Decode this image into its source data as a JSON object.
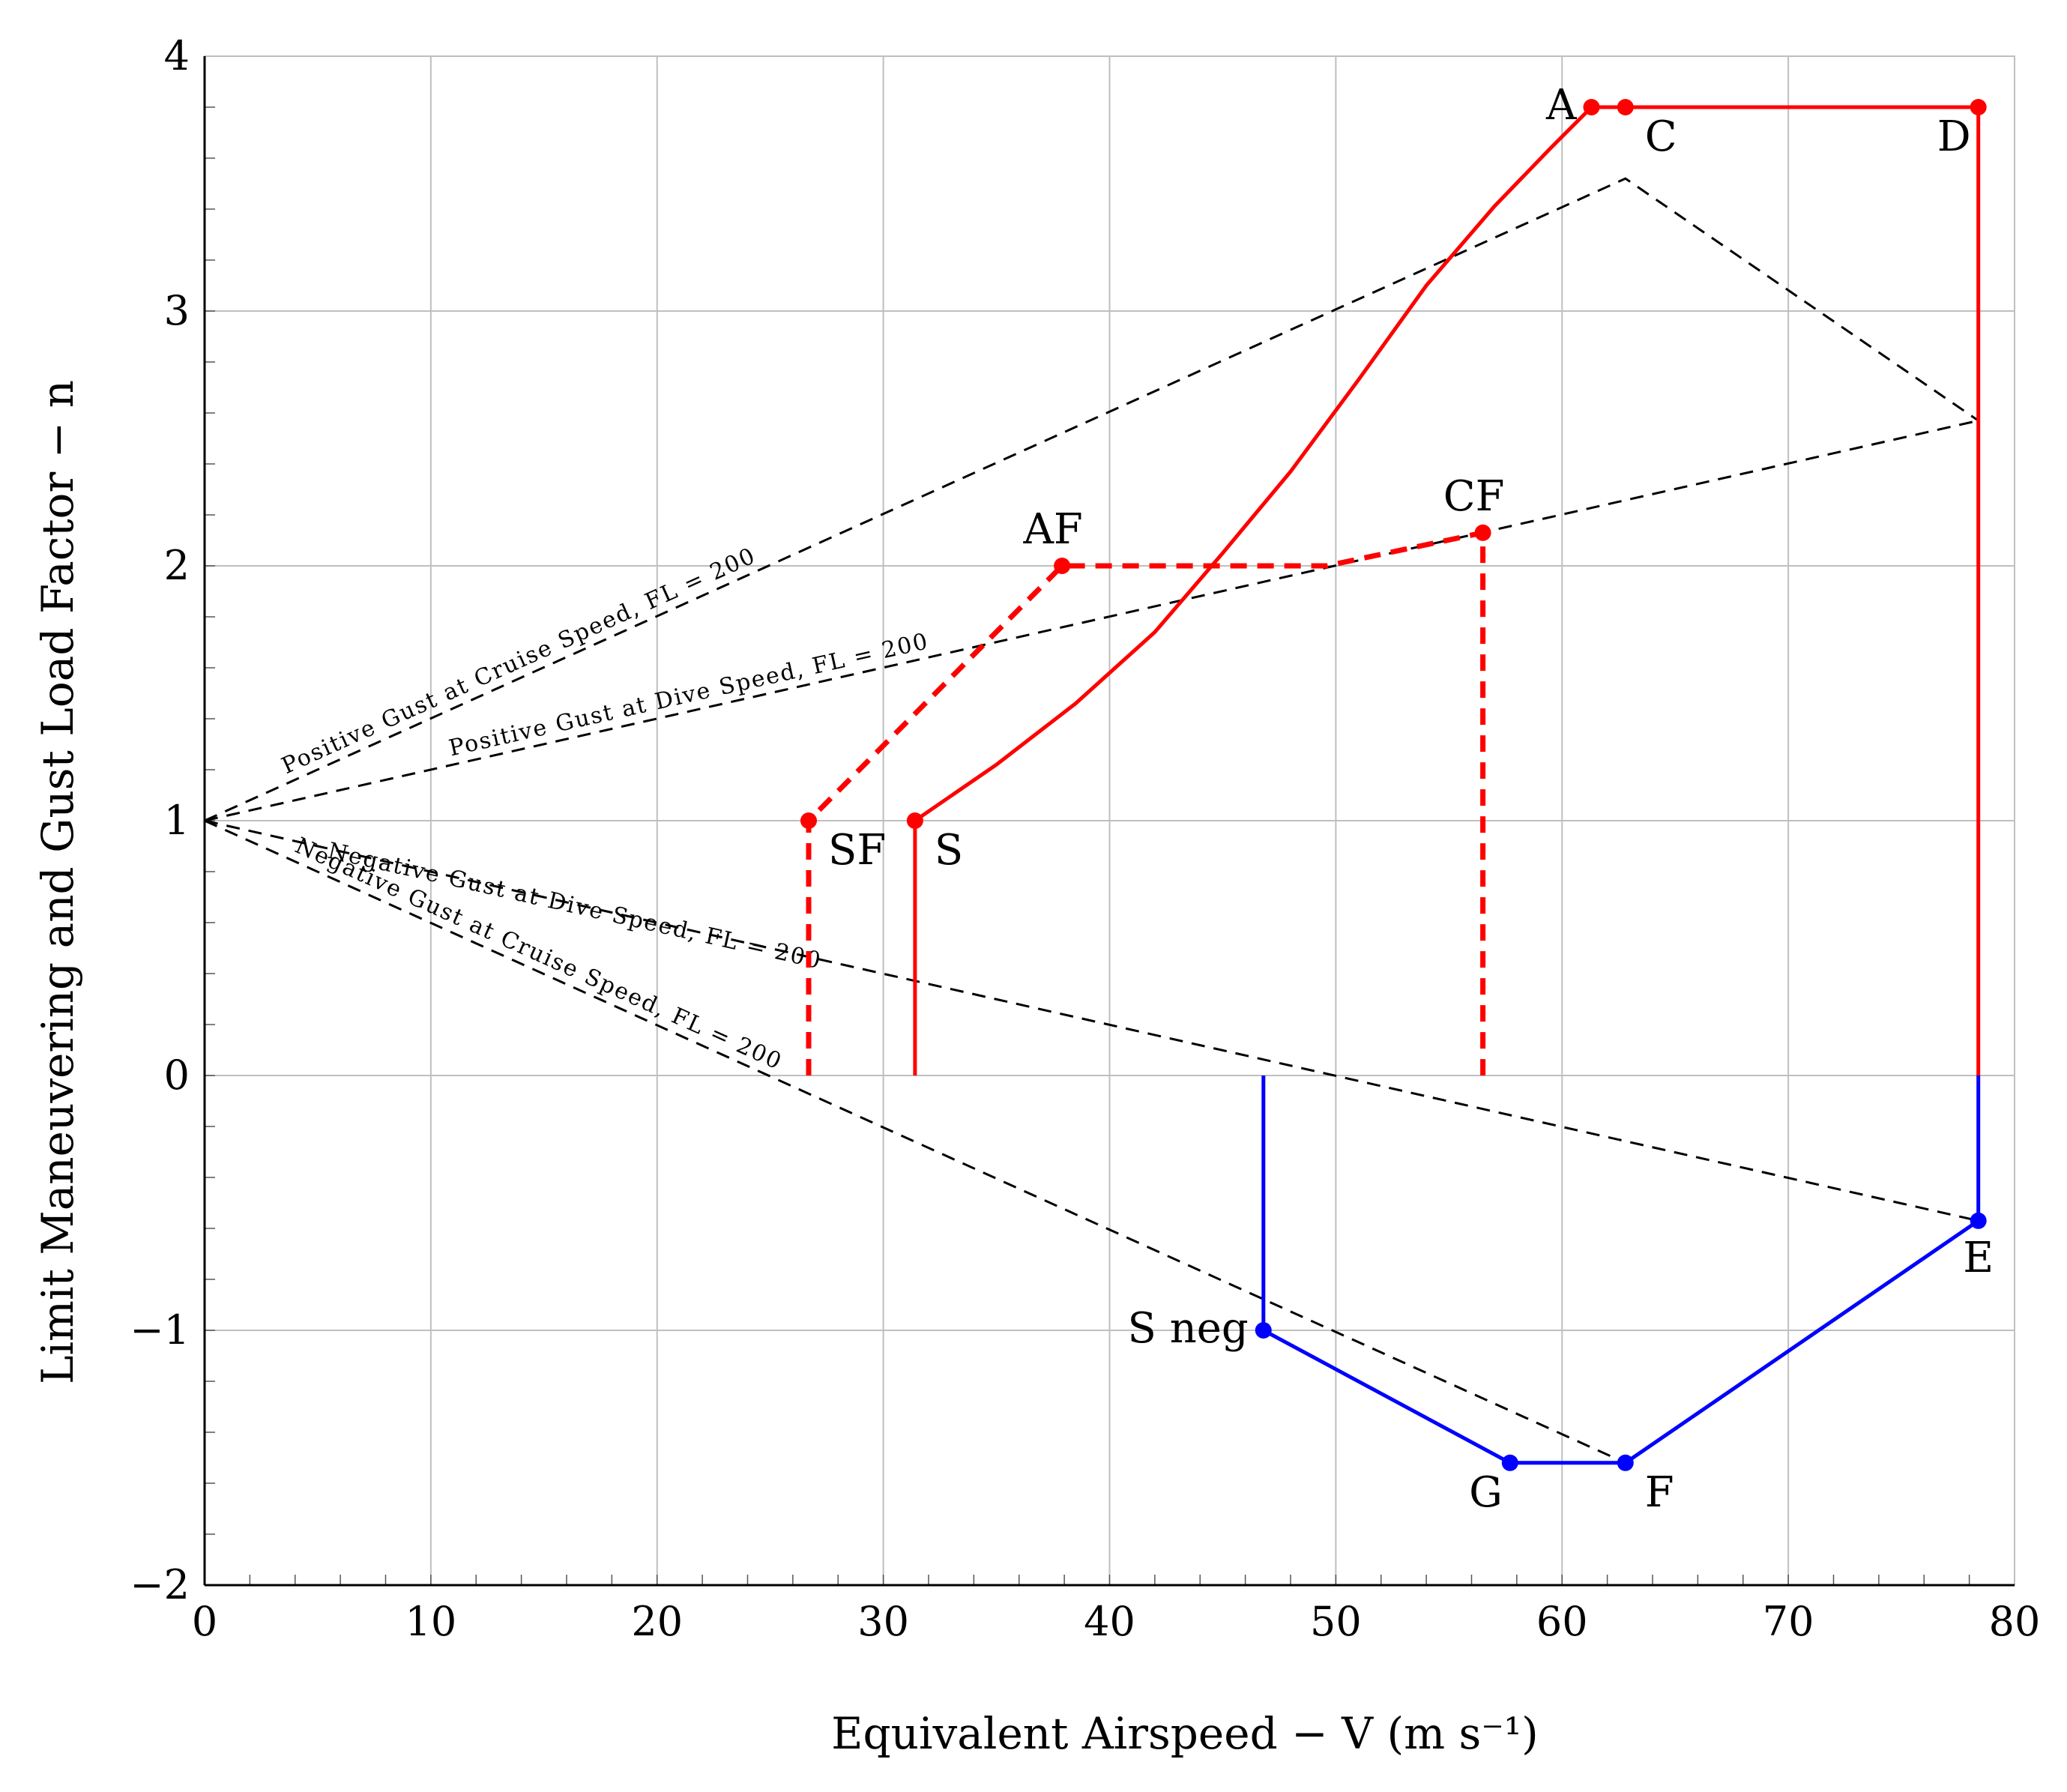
{
  "chart_data": {
    "type": "line",
    "xlabel": "Equivalent Airspeed − V (m s⁻¹)",
    "ylabel": "Limit Maneuvering and Gust Load Factor − n",
    "xlim": [
      0,
      80
    ],
    "ylim": [
      -2,
      4
    ],
    "xticks": [
      0,
      10,
      20,
      30,
      40,
      50,
      60,
      70,
      80
    ],
    "yticks": [
      -2,
      -1,
      0,
      1,
      2,
      3,
      4
    ],
    "ytick_labels": [
      "−2",
      "−1",
      "0",
      "1",
      "2",
      "3",
      "4"
    ],
    "grid": true,
    "colors": {
      "positive": "#ff0000",
      "negative": "#0000ff",
      "gust": "#000000",
      "grid": "#bfbfbf"
    },
    "series": [
      {
        "kind": "maneuver-positive",
        "color": "#ff0000",
        "style": "solid",
        "points": [
          [
            31.4,
            0
          ],
          [
            31.4,
            1.0
          ],
          [
            35,
            1.22
          ],
          [
            38.5,
            1.46
          ],
          [
            42,
            1.74
          ],
          [
            45,
            2.05
          ],
          [
            48,
            2.37
          ],
          [
            51,
            2.73
          ],
          [
            54,
            3.1
          ],
          [
            57,
            3.41
          ],
          [
            59.5,
            3.64
          ],
          [
            61.3,
            3.8
          ],
          [
            62.8,
            3.8
          ],
          [
            78.4,
            3.8
          ],
          [
            78.4,
            0
          ]
        ]
      },
      {
        "kind": "maneuver-positive-flaps",
        "color": "#ff0000",
        "style": "dashed",
        "points": [
          [
            26.7,
            0
          ],
          [
            26.7,
            1.0
          ],
          [
            37.9,
            2.0
          ],
          [
            49.6,
            2.0
          ],
          [
            56.5,
            2.13
          ],
          [
            56.5,
            0
          ]
        ]
      },
      {
        "kind": "maneuver-negative",
        "color": "#0000ff",
        "style": "solid",
        "points": [
          [
            46.8,
            0
          ],
          [
            46.8,
            -1.0
          ],
          [
            57.7,
            -1.52
          ],
          [
            62.8,
            -1.52
          ],
          [
            78.4,
            -0.57
          ],
          [
            78.4,
            0
          ]
        ]
      },
      {
        "name": "Positive Gust at Cruise Speed, FL = 200",
        "kind": "gust",
        "color": "#000000",
        "style": "dashed",
        "points": [
          [
            0,
            1.0
          ],
          [
            62.8,
            3.52
          ],
          [
            78.4,
            2.57
          ]
        ]
      },
      {
        "name": "Positive Gust at Dive Speed, FL = 200",
        "kind": "gust",
        "color": "#000000",
        "style": "dashed",
        "points": [
          [
            0,
            1.0
          ],
          [
            78.4,
            2.57
          ]
        ]
      },
      {
        "name": "Negative Gust at Dive Speed, FL = 200",
        "kind": "gust",
        "color": "#000000",
        "style": "dashed",
        "points": [
          [
            0,
            1.0
          ],
          [
            78.4,
            -0.57
          ]
        ]
      },
      {
        "name": "Negative Gust at Cruise Speed, FL = 200",
        "kind": "gust",
        "color": "#000000",
        "style": "dashed",
        "points": [
          [
            0,
            1.0
          ],
          [
            62.8,
            -1.52
          ],
          [
            78.4,
            -0.57
          ]
        ]
      }
    ],
    "markers": [
      {
        "label": "A",
        "x": 61.3,
        "y": 3.8,
        "color": "#ff0000",
        "anchor": "left"
      },
      {
        "label": "C",
        "x": 62.8,
        "y": 3.8,
        "color": "#ff0000",
        "anchor": "below-right"
      },
      {
        "label": "D",
        "x": 78.4,
        "y": 3.8,
        "color": "#ff0000",
        "anchor": "below-left"
      },
      {
        "label": "S",
        "x": 31.4,
        "y": 1.0,
        "color": "#ff0000",
        "anchor": "below-right"
      },
      {
        "label": "SF",
        "x": 26.7,
        "y": 1.0,
        "color": "#ff0000",
        "anchor": "below-right"
      },
      {
        "label": "AF",
        "x": 37.9,
        "y": 2.0,
        "color": "#ff0000",
        "anchor": "above"
      },
      {
        "label": "CF",
        "x": 56.5,
        "y": 2.13,
        "color": "#ff0000",
        "anchor": "above"
      },
      {
        "label": "E",
        "x": 78.4,
        "y": -0.57,
        "color": "#0000ff",
        "anchor": "below"
      },
      {
        "label": "F",
        "x": 62.8,
        "y": -1.52,
        "color": "#0000ff",
        "anchor": "below-right"
      },
      {
        "label": "G",
        "x": 57.7,
        "y": -1.52,
        "color": "#0000ff",
        "anchor": "below-left"
      },
      {
        "label": "S neg",
        "x": 46.8,
        "y": -1.0,
        "color": "#0000ff",
        "anchor": "left"
      }
    ],
    "annotations": [
      {
        "text": "Positive Gust at Cruise Speed, FL = 200",
        "series": 3
      },
      {
        "text": "Positive Gust at Dive Speed, FL = 200",
        "series": 4
      },
      {
        "text": "Negative Gust at Dive Speed, FL = 200",
        "series": 5
      },
      {
        "text": "Negative Gust at Cruise Speed, FL = 200",
        "series": 6
      }
    ]
  }
}
